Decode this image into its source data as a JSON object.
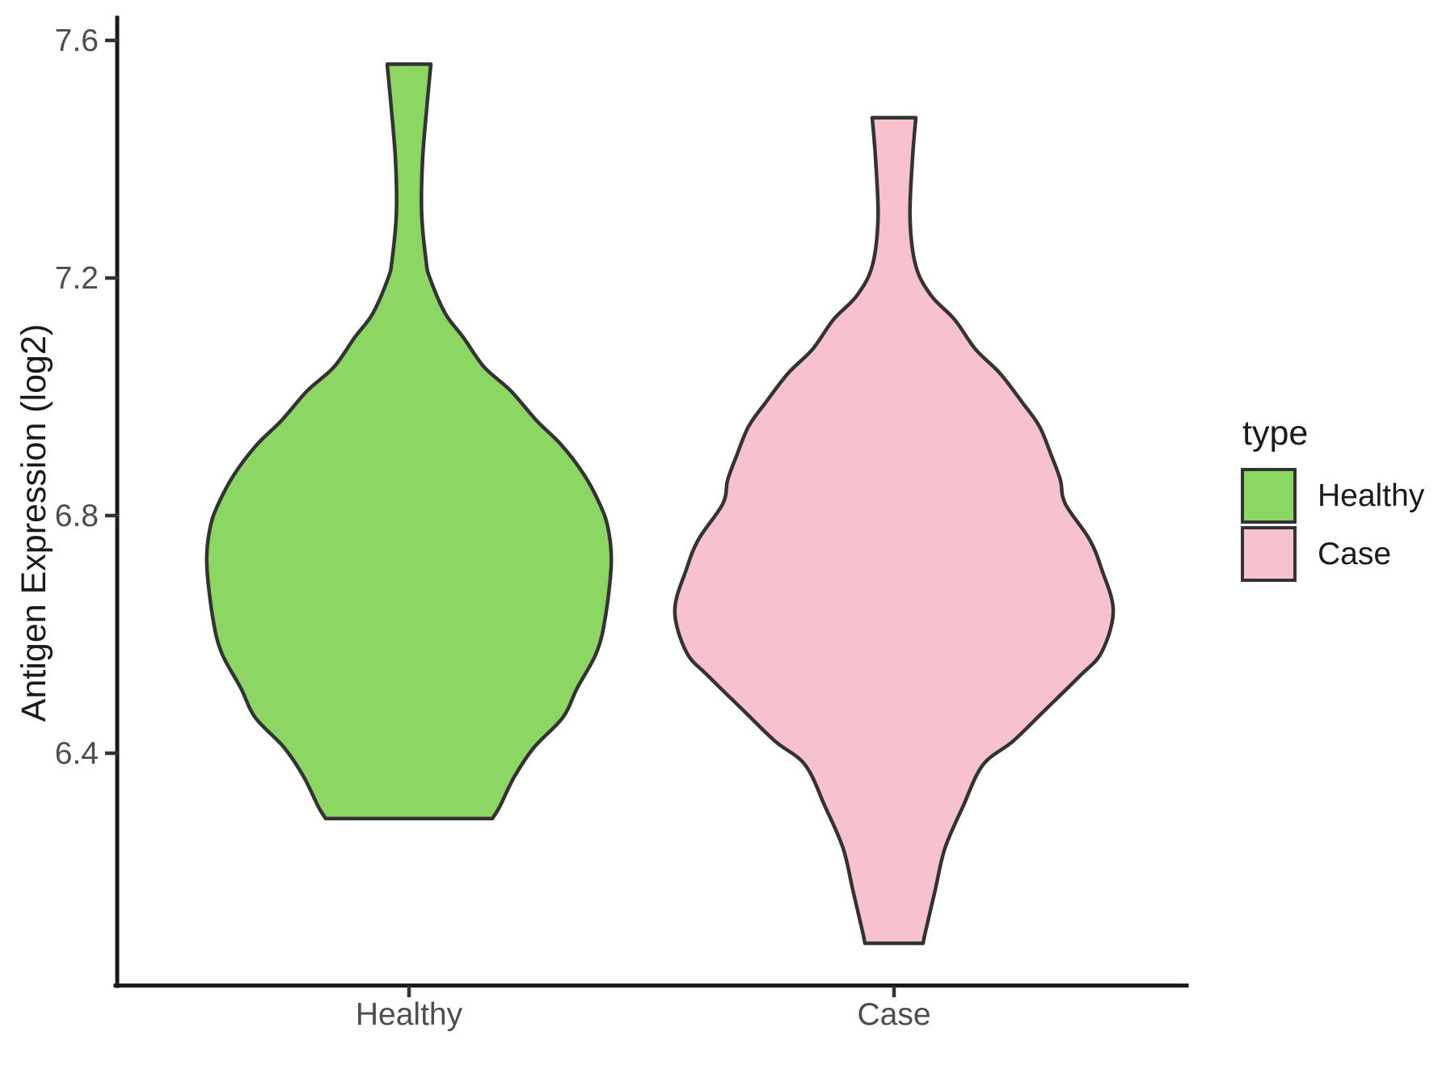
{
  "y_axis": {
    "title": "Antigen Expression (log2)",
    "tick_labels": [
      "7.6",
      "7.2",
      "6.8",
      "6.4"
    ]
  },
  "x_axis": {
    "tick_labels": [
      "Healthy",
      "Case"
    ]
  },
  "legend": {
    "title": "type",
    "items": [
      {
        "label": "Healthy",
        "color": "#8CD663"
      },
      {
        "label": "Case",
        "color": "#F7C2CE"
      }
    ]
  },
  "colors": {
    "axis_line": "#1a1a1a",
    "tick_mark": "#333333",
    "tick_label": "#4d4d4d",
    "text": "#1a1a1a",
    "violin_outline": "#333333",
    "background": "#ffffff"
  },
  "chart_data": {
    "type": "violin",
    "orientation": "vertical",
    "title": "",
    "xlabel": "",
    "ylabel": "Antigen Expression (log2)",
    "categories": [
      "Healthy",
      "Case"
    ],
    "y_ticks": [
      7.6,
      7.2,
      6.8,
      6.4
    ],
    "ylim": [
      6.01,
      7.64
    ],
    "grid": false,
    "legend": {
      "title": "type",
      "position": "right"
    },
    "series": [
      {
        "name": "Healthy",
        "fill": "#8CD663",
        "outline": "#333333",
        "range": [
          6.29,
          7.56
        ],
        "peak_value": 6.75,
        "max_halfwidth": 0.42,
        "profile": [
          [
            7.56,
            0.045
          ],
          [
            7.49,
            0.037
          ],
          [
            7.4,
            0.028
          ],
          [
            7.31,
            0.026
          ],
          [
            7.23,
            0.035
          ],
          [
            7.2,
            0.043
          ],
          [
            7.14,
            0.075
          ],
          [
            7.1,
            0.112
          ],
          [
            7.05,
            0.155
          ],
          [
            7.01,
            0.21
          ],
          [
            6.96,
            0.263
          ],
          [
            6.92,
            0.313
          ],
          [
            6.87,
            0.36
          ],
          [
            6.82,
            0.393
          ],
          [
            6.78,
            0.41
          ],
          [
            6.72,
            0.417
          ],
          [
            6.63,
            0.405
          ],
          [
            6.57,
            0.387
          ],
          [
            6.51,
            0.347
          ],
          [
            6.46,
            0.317
          ],
          [
            6.41,
            0.258
          ],
          [
            6.36,
            0.217
          ],
          [
            6.31,
            0.187
          ],
          [
            6.29,
            0.172
          ]
        ]
      },
      {
        "name": "Case",
        "fill": "#F7C2CE",
        "outline": "#333333",
        "range": [
          6.08,
          7.47
        ],
        "peak_value": 6.64,
        "max_halfwidth": 0.45,
        "profile": [
          [
            7.47,
            0.045
          ],
          [
            7.4,
            0.038
          ],
          [
            7.3,
            0.033
          ],
          [
            7.22,
            0.045
          ],
          [
            7.17,
            0.077
          ],
          [
            7.13,
            0.125
          ],
          [
            7.08,
            0.168
          ],
          [
            7.04,
            0.218
          ],
          [
            6.99,
            0.265
          ],
          [
            6.95,
            0.3
          ],
          [
            6.9,
            0.325
          ],
          [
            6.86,
            0.343
          ],
          [
            6.82,
            0.353
          ],
          [
            6.76,
            0.403
          ],
          [
            6.71,
            0.428
          ],
          [
            6.64,
            0.452
          ],
          [
            6.57,
            0.428
          ],
          [
            6.53,
            0.383
          ],
          [
            6.47,
            0.308
          ],
          [
            6.42,
            0.245
          ],
          [
            6.38,
            0.183
          ],
          [
            6.31,
            0.142
          ],
          [
            6.24,
            0.105
          ],
          [
            6.17,
            0.085
          ],
          [
            6.1,
            0.065
          ],
          [
            6.08,
            0.06
          ]
        ]
      }
    ]
  }
}
